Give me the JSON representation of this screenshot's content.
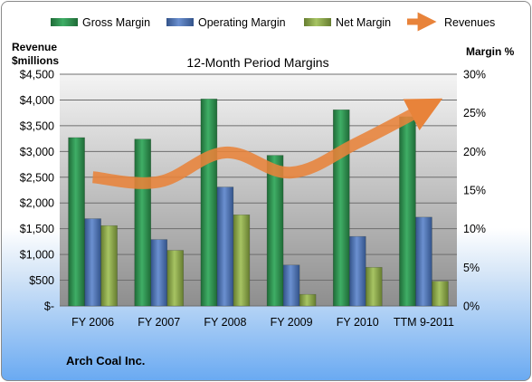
{
  "chart_data": {
    "type": "bar",
    "title": "12-Month Period Margins",
    "categories": [
      "FY 2006",
      "FY 2007",
      "FY 2008",
      "FY 2009",
      "FY 2010",
      "TTM 9-2011"
    ],
    "series": [
      {
        "name": "Gross Margin",
        "type": "bar",
        "axis": "right",
        "color": "#2e8b4e",
        "values": [
          21.8,
          21.6,
          26.8,
          19.5,
          25.4,
          24.5
        ]
      },
      {
        "name": "Operating Margin",
        "type": "bar",
        "axis": "right",
        "color": "#4a6fb0",
        "values": [
          11.3,
          8.6,
          15.4,
          5.3,
          9.0,
          11.5
        ]
      },
      {
        "name": "Net Margin",
        "type": "bar",
        "axis": "right",
        "color": "#8aa84a",
        "values": [
          10.4,
          7.2,
          11.8,
          1.5,
          5.0,
          3.2
        ]
      },
      {
        "name": "Revenues",
        "type": "line",
        "axis": "left",
        "color": "#e8833a",
        "values": [
          2500,
          2410,
          2980,
          2590,
          3170,
          3840
        ]
      }
    ],
    "y_left": {
      "label_line1": "Revenue",
      "label_line2": "$millions",
      "range": [
        0,
        4500
      ],
      "ticks": [
        "$-",
        "$500",
        "$1,000",
        "$1,500",
        "$2,000",
        "$2,500",
        "$3,000",
        "$3,500",
        "$4,000",
        "$4,500"
      ]
    },
    "y_right": {
      "label": "Margin %",
      "range": [
        0,
        30
      ],
      "ticks": [
        "0%",
        "5%",
        "10%",
        "15%",
        "20%",
        "25%",
        "30%"
      ]
    },
    "grid": true,
    "legend": "top",
    "footer": "Arch Coal Inc."
  }
}
